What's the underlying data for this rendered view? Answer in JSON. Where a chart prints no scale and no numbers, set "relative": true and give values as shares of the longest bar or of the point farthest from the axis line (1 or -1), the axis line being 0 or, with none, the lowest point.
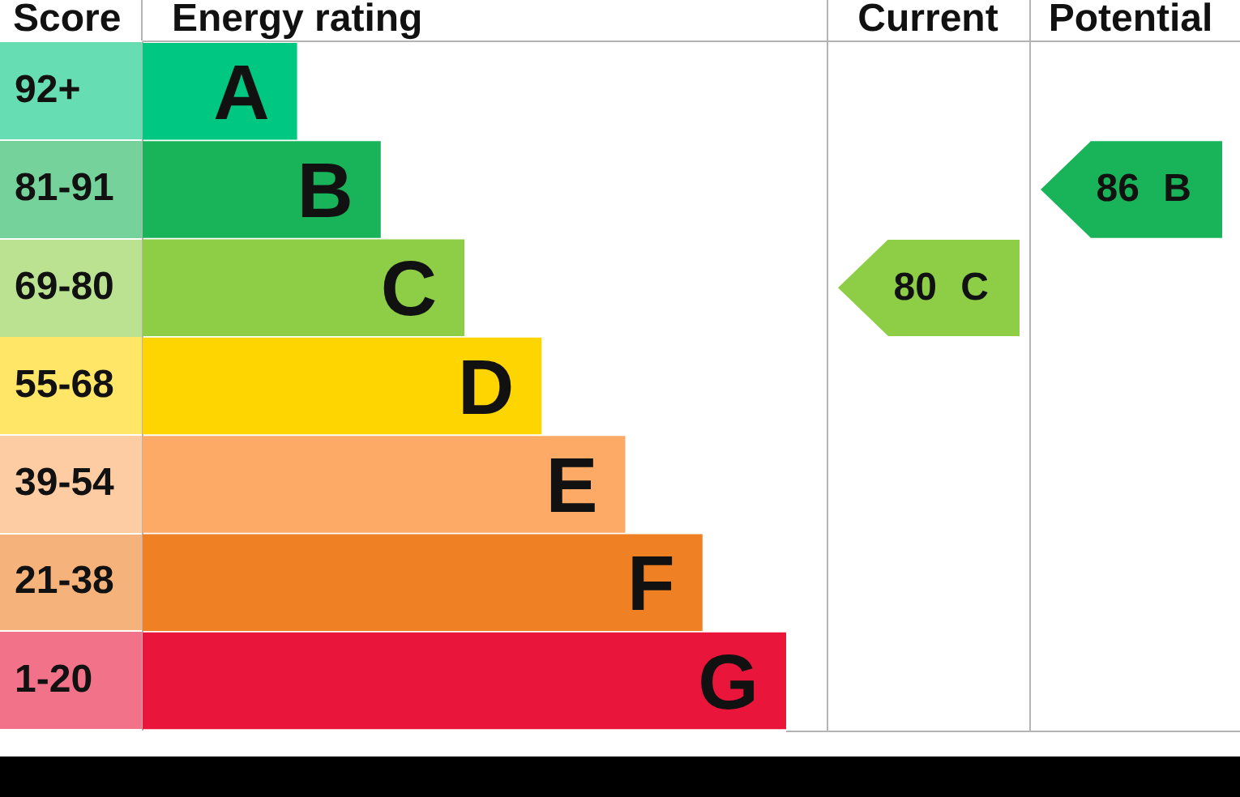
{
  "chart_data": {
    "type": "bar",
    "orientation": "horizontal",
    "relative": true,
    "xlabel": "Energy rating",
    "ylabel": "Score",
    "categories": [
      "92+",
      "81-91",
      "69-80",
      "55-68",
      "39-54",
      "21-38",
      "1-20"
    ],
    "values": [
      0.24,
      0.37,
      0.5,
      0.62,
      0.75,
      0.87,
      1
    ],
    "colors": [
      "#00c781",
      "#19b459",
      "#8dce46",
      "#ffd500",
      "#fcaa65",
      "#ef8023",
      "#e9153b"
    ],
    "annotations": [
      {
        "text": "A",
        "x": 0.24,
        "y": "92+"
      },
      {
        "text": "B",
        "x": 0.37,
        "y": "81-91"
      },
      {
        "text": "C",
        "x": 0.5,
        "y": "69-80"
      },
      {
        "text": "D",
        "x": 0.62,
        "y": "55-68"
      },
      {
        "text": "E",
        "x": 0.75,
        "y": "39-54"
      },
      {
        "text": "F",
        "x": 0.87,
        "y": "21-38"
      },
      {
        "text": "G",
        "x": 1,
        "y": "1-20"
      },
      "Current",
      "Potential",
      "80 C",
      "86 B"
    ]
  }
}
